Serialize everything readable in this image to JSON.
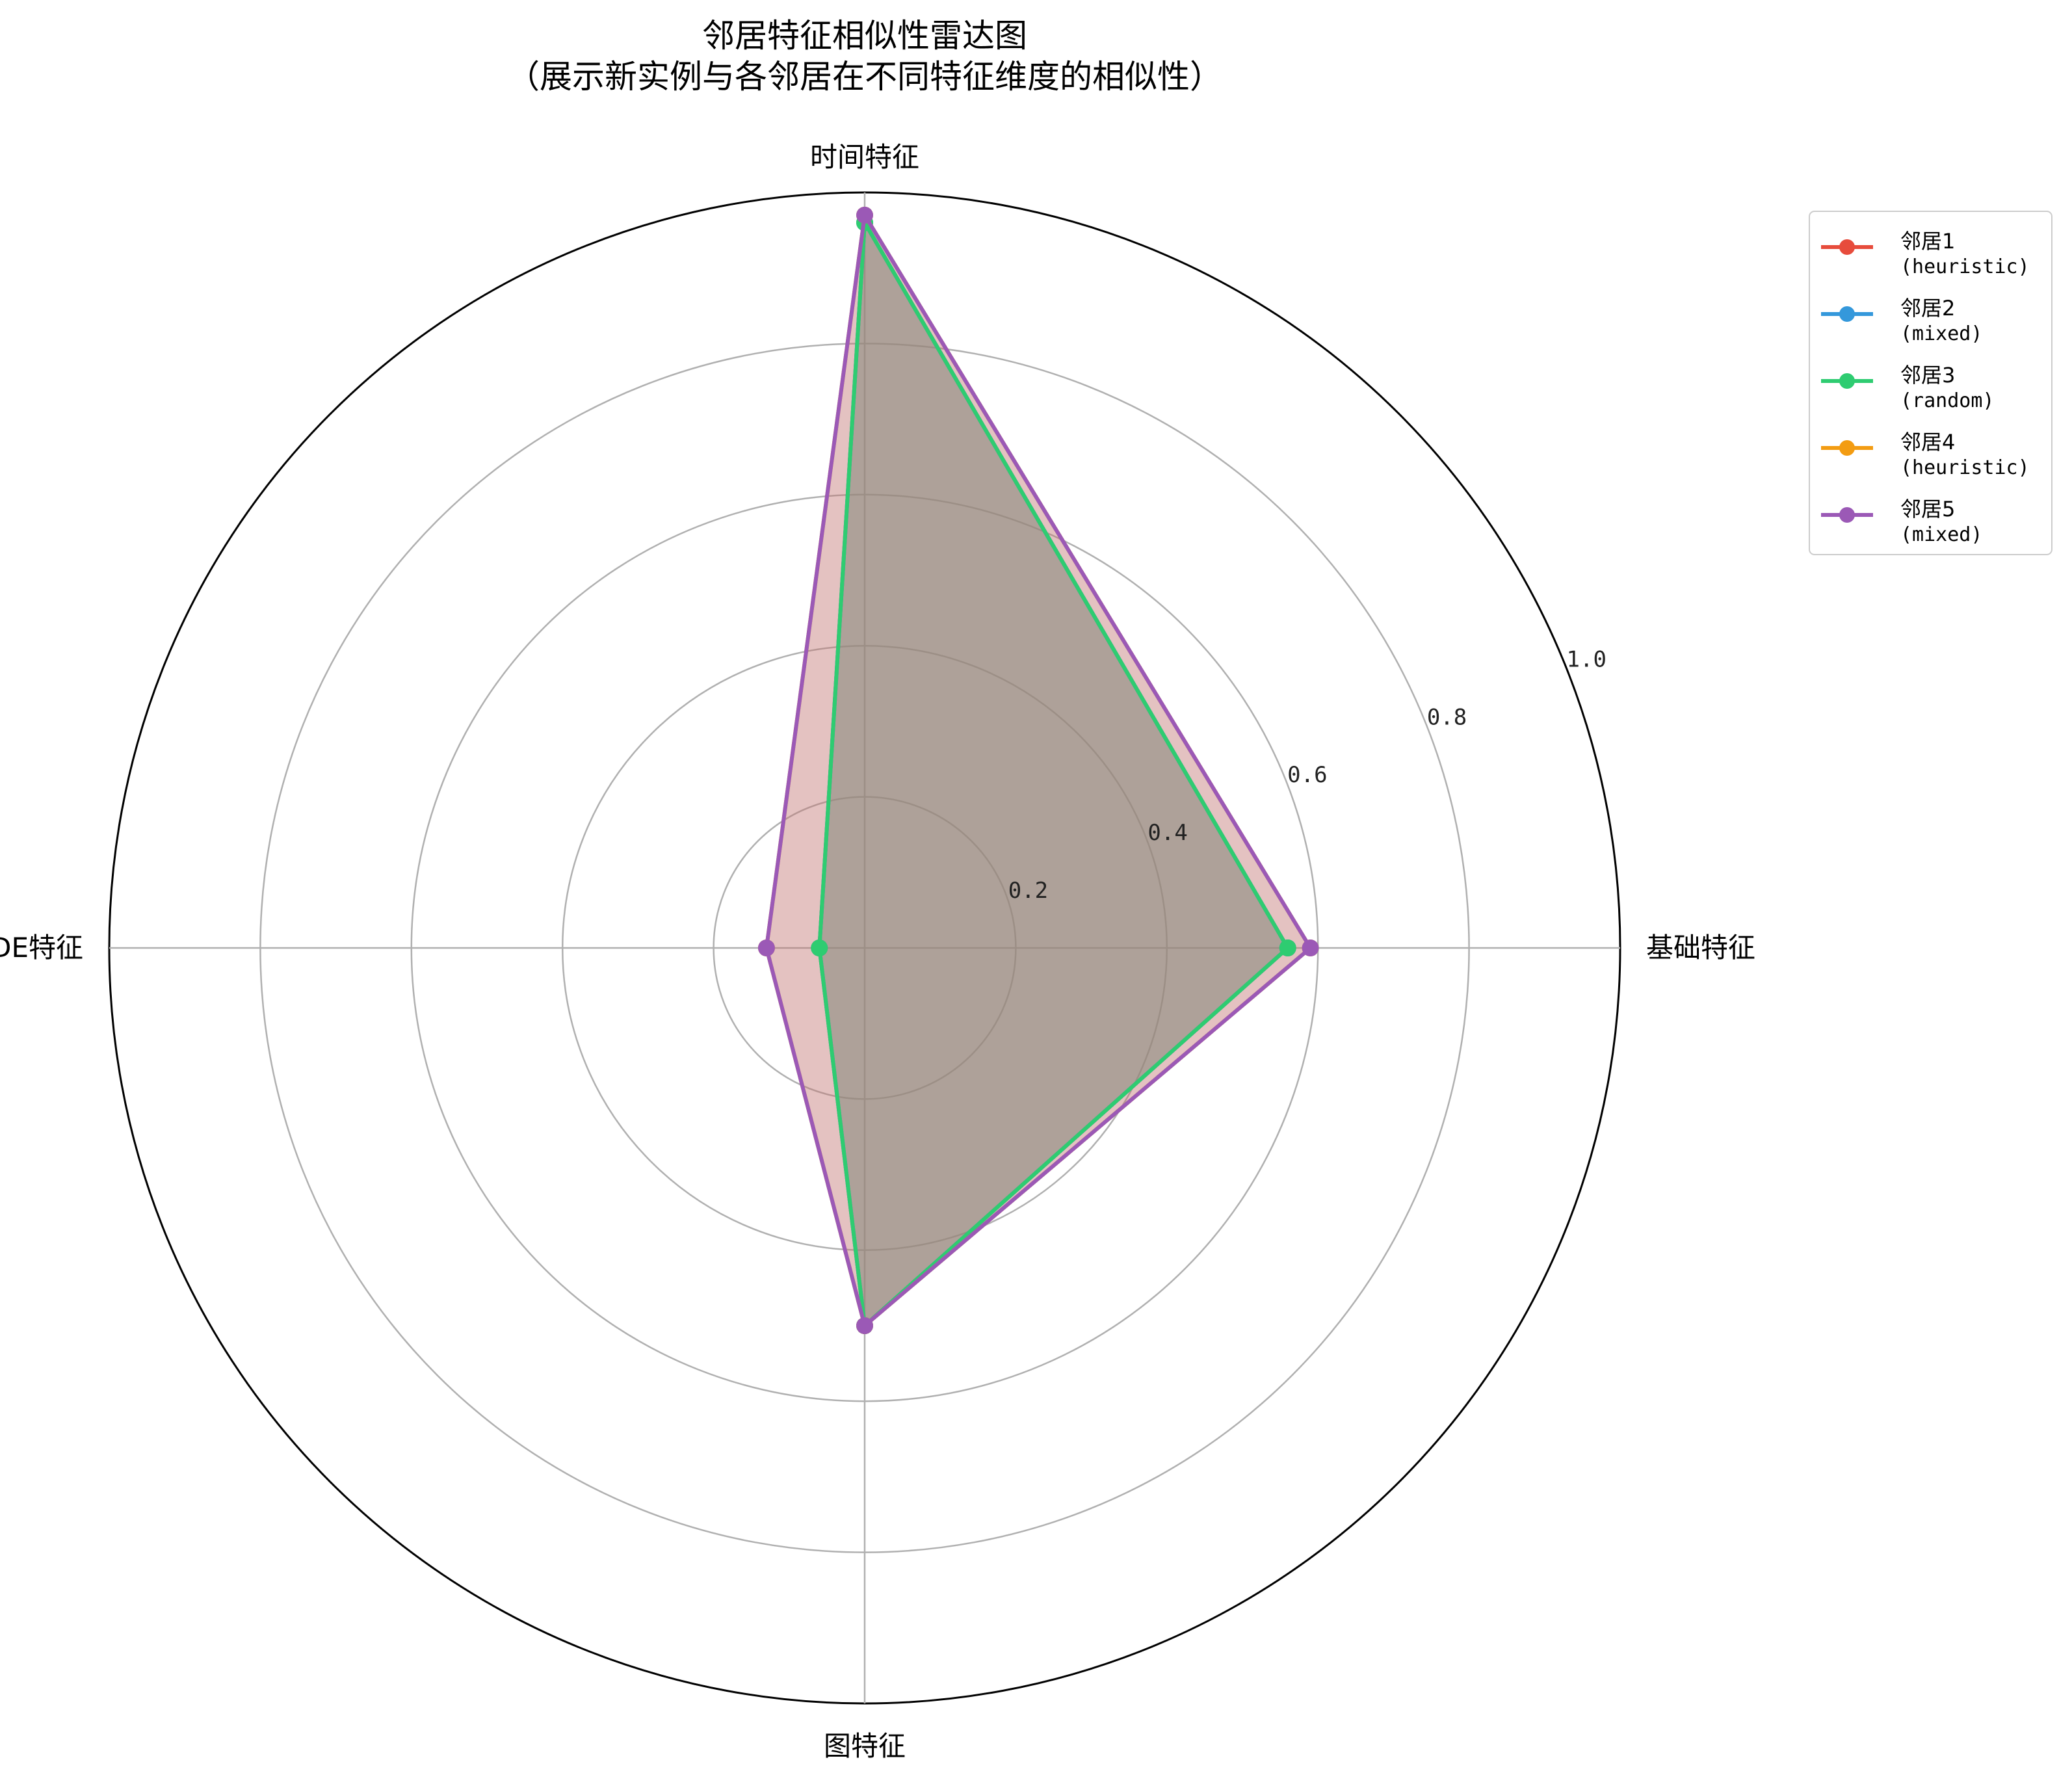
{
  "chart_data": {
    "type": "radar",
    "title_lines": [
      "邻居特征相似性雷达图",
      "（展示新实例与各邻居在不同特征维度的相似性）"
    ],
    "axes": [
      "基础特征",
      "时间特征",
      "KDE特征",
      "图特征"
    ],
    "rlim": [
      0,
      1.0
    ],
    "r_ticks": [
      0.2,
      0.4,
      0.6,
      0.8,
      1.0
    ],
    "r_tick_labels": [
      "0.2",
      "0.4",
      "0.6",
      "0.8",
      "1.0"
    ],
    "grid": true,
    "legend_position": "upper right, outside plot",
    "series": [
      {
        "name": "邻居1",
        "sub": "(heuristic)",
        "color": "#e74c3c",
        "values": [
          0.56,
          0.96,
          0.06,
          0.5
        ]
      },
      {
        "name": "邻居2",
        "sub": "(mixed)",
        "color": "#3498db",
        "values": [
          0.56,
          0.96,
          0.06,
          0.5
        ]
      },
      {
        "name": "邻居3",
        "sub": "(random)",
        "color": "#2ecc71",
        "values": [
          0.56,
          0.96,
          0.06,
          0.5
        ]
      },
      {
        "name": "邻居4",
        "sub": "(heuristic)",
        "color": "#f39c12",
        "values": [
          0.59,
          0.97,
          0.13,
          0.5
        ]
      },
      {
        "name": "邻居5",
        "sub": "(mixed)",
        "color": "#9b59b6",
        "values": [
          0.59,
          0.97,
          0.13,
          0.5
        ]
      }
    ]
  }
}
